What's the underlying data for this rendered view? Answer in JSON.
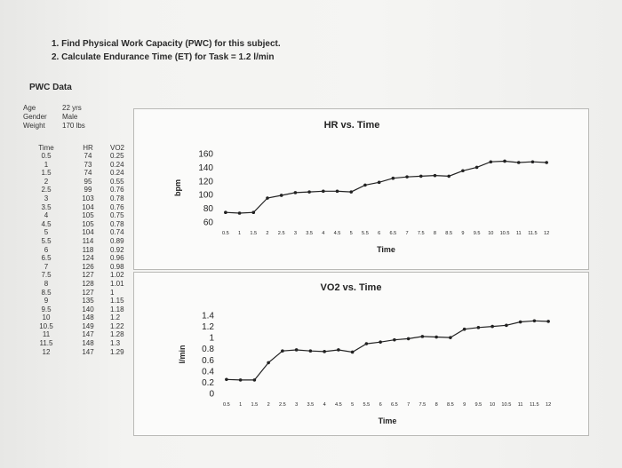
{
  "instructions": [
    "1.  Find Physical Work Capacity (PWC) for this subject.",
    "2.  Calculate Endurance Time (ET) for Task = 1.2 l/min"
  ],
  "pwc_title": "PWC Data",
  "subject": {
    "age_label": "Age",
    "age_value": "22 yrs",
    "gender_label": "Gender",
    "gender_value": "Male",
    "weight_label": "Weight",
    "weight_value": "170 lbs"
  },
  "table": {
    "headers": [
      "Time",
      "HR",
      "VO2"
    ],
    "rows": [
      [
        "0.5",
        "74",
        "0.25"
      ],
      [
        "1",
        "73",
        "0.24"
      ],
      [
        "1.5",
        "74",
        "0.24"
      ],
      [
        "2",
        "95",
        "0.55"
      ],
      [
        "2.5",
        "99",
        "0.76"
      ],
      [
        "3",
        "103",
        "0.78"
      ],
      [
        "3.5",
        "104",
        "0.76"
      ],
      [
        "4",
        "105",
        "0.75"
      ],
      [
        "4.5",
        "105",
        "0.78"
      ],
      [
        "5",
        "104",
        "0.74"
      ],
      [
        "5.5",
        "114",
        "0.89"
      ],
      [
        "6",
        "118",
        "0.92"
      ],
      [
        "6.5",
        "124",
        "0.96"
      ],
      [
        "7",
        "126",
        "0.98"
      ],
      [
        "7.5",
        "127",
        "1.02"
      ],
      [
        "8",
        "128",
        "1.01"
      ],
      [
        "8.5",
        "127",
        "1"
      ],
      [
        "9",
        "135",
        "1.15"
      ],
      [
        "9.5",
        "140",
        "1.18"
      ],
      [
        "10",
        "148",
        "1.2"
      ],
      [
        "10.5",
        "149",
        "1.22"
      ],
      [
        "11",
        "147",
        "1.28"
      ],
      [
        "11.5",
        "148",
        "1.3"
      ],
      [
        "12",
        "147",
        "1.29"
      ]
    ]
  },
  "chart_data": [
    {
      "type": "line",
      "title": "HR vs. Time",
      "xlabel": "Time",
      "ylabel": "bpm",
      "x": [
        "0.5",
        "1",
        "1.5",
        "2",
        "2.5",
        "3",
        "3.5",
        "4",
        "4.5",
        "5",
        "5.5",
        "6",
        "6.5",
        "7",
        "7.5",
        "8",
        "8.5",
        "9",
        "9.5",
        "10",
        "10.5",
        "11",
        "11.5",
        "12"
      ],
      "values": [
        74,
        73,
        74,
        95,
        99,
        103,
        104,
        105,
        105,
        104,
        114,
        118,
        124,
        126,
        127,
        128,
        127,
        135,
        140,
        148,
        149,
        147,
        148,
        147
      ],
      "ylim": [
        60,
        160
      ],
      "yticks": [
        "60",
        "80",
        "100",
        "120",
        "140",
        "160"
      ],
      "grid": false,
      "color": "#222222"
    },
    {
      "type": "line",
      "title": "VO2 vs. Time",
      "xlabel": "Time",
      "ylabel": "l/min",
      "x": [
        "0.5",
        "1",
        "1.5",
        "2",
        "2.5",
        "3",
        "3.5",
        "4",
        "4.5",
        "5",
        "5.5",
        "6",
        "6.5",
        "7",
        "7.5",
        "8",
        "8.5",
        "9",
        "9.5",
        "10",
        "10.5",
        "11",
        "11.5",
        "12"
      ],
      "values": [
        0.25,
        0.24,
        0.24,
        0.55,
        0.76,
        0.78,
        0.76,
        0.75,
        0.78,
        0.74,
        0.89,
        0.92,
        0.96,
        0.98,
        1.02,
        1.01,
        1.0,
        1.15,
        1.18,
        1.2,
        1.22,
        1.28,
        1.3,
        1.29
      ],
      "ylim": [
        0,
        1.4
      ],
      "yticks": [
        "0",
        "0.2",
        "0.4",
        "0.6",
        "0.8",
        "1",
        "1.2",
        "1.4"
      ],
      "grid": false,
      "color": "#222222"
    }
  ]
}
